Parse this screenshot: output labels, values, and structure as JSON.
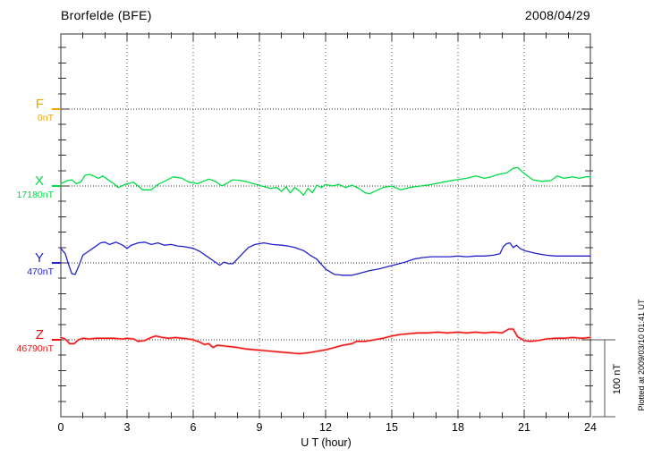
{
  "header": {
    "title": "Brorfelde (BFE)",
    "date": "2008/04/29"
  },
  "plot_note": "Plotted at 2009/03/10 01:41 UT",
  "chart_data": {
    "type": "line",
    "title": "Brorfelde (BFE)",
    "subtitle_date": "2008/04/29",
    "xlabel": "U T (hour)",
    "x_range": [
      0,
      24
    ],
    "x_ticks": [
      0,
      3,
      6,
      9,
      12,
      15,
      18,
      21,
      24
    ],
    "x_minor_tick_step_hours": 1,
    "grid": "dotted vertical lines every 3 hours; dotted horizontal line at each component baseline",
    "y_minor_tick_step_nT": 20,
    "scale_bar": {
      "label": "100 nT",
      "nT": 100
    },
    "series": [
      {
        "name": "F",
        "baseline_label": "0nT",
        "baseline_nT": 0,
        "color": "#f0a500",
        "x": [],
        "dnT": [],
        "note": "baseline only, no trace plotted"
      },
      {
        "name": "X",
        "baseline_label": "17180nT",
        "baseline_nT": 17180,
        "color": "#00dd44",
        "x": [
          0,
          0.3,
          0.5,
          0.7,
          0.9,
          1.1,
          1.3,
          1.5,
          1.7,
          1.9,
          2.1,
          2.4,
          2.6,
          2.9,
          3.3,
          3.7,
          4.1,
          4.4,
          4.7,
          5.1,
          5.5,
          5.8,
          6.2,
          6.7,
          7.0,
          7.3,
          7.8,
          8.2,
          8.5,
          9.1,
          9.5,
          9.8,
          10.0,
          10.2,
          10.4,
          10.6,
          10.8,
          11.0,
          11.2,
          11.4,
          11.6,
          11.8,
          12.0,
          12.3,
          12.6,
          12.9,
          13.2,
          13.5,
          13.8,
          14.0,
          14.3,
          14.6,
          15.0,
          15.4,
          15.8,
          16.3,
          16.8,
          17.3,
          17.9,
          18.4,
          18.8,
          19.2,
          19.5,
          19.8,
          20.2,
          20.5,
          20.7,
          20.9,
          21.1,
          21.4,
          21.8,
          22.2,
          22.5,
          22.8,
          23.2,
          23.5,
          23.8,
          24
        ],
        "dnT": [
          3,
          7,
          8,
          3,
          5,
          14,
          15,
          13,
          10,
          13,
          9,
          3,
          -2,
          2,
          5,
          -5,
          -5,
          2,
          6,
          12,
          10,
          5,
          3,
          9,
          6,
          0,
          8,
          7,
          5,
          0,
          -3,
          -2,
          -7,
          -1,
          -9,
          -2,
          -6,
          -12,
          -3,
          -9,
          1,
          -2,
          2,
          0,
          2,
          -2,
          1,
          -3,
          -9,
          -10,
          -6,
          -2,
          0,
          -5,
          -2,
          0,
          2,
          5,
          8,
          10,
          13,
          10,
          12,
          15,
          17,
          23,
          24,
          19,
          14,
          8,
          6,
          7,
          13,
          10,
          12,
          10,
          12,
          12
        ]
      },
      {
        "name": "Y",
        "baseline_label": "470nT",
        "baseline_nT": 470,
        "color": "#2222cc",
        "x": [
          0,
          0.2,
          0.35,
          0.5,
          0.65,
          0.8,
          1.0,
          1.2,
          1.5,
          1.8,
          2.0,
          2.2,
          2.5,
          2.8,
          3.0,
          3.2,
          3.5,
          3.8,
          4.1,
          4.4,
          4.7,
          5.0,
          5.3,
          5.6,
          6.0,
          6.3,
          6.6,
          6.9,
          7.2,
          7.4,
          7.6,
          7.8,
          8.1,
          8.5,
          8.8,
          9.2,
          9.6,
          10.0,
          10.3,
          10.6,
          11.0,
          11.3,
          11.6,
          12.0,
          12.4,
          12.8,
          13.2,
          13.6,
          14.0,
          14.4,
          14.8,
          15.2,
          15.6,
          16.0,
          16.4,
          16.8,
          17.2,
          17.6,
          18.0,
          18.4,
          18.8,
          19.2,
          19.6,
          19.9,
          20.05,
          20.2,
          20.35,
          20.5,
          20.65,
          20.8,
          21.0,
          21.3,
          21.6,
          22.0,
          22.4,
          22.8,
          23.2,
          23.6,
          24
        ],
        "dnT": [
          19,
          12,
          -2,
          -14,
          -15,
          -5,
          10,
          14,
          20,
          26,
          27,
          24,
          27,
          23,
          19,
          23,
          26,
          27,
          24,
          26,
          23,
          24,
          22,
          21,
          19,
          15,
          9,
          3,
          -3,
          1,
          -1,
          -1,
          8,
          20,
          24,
          26,
          24,
          23,
          22,
          20,
          16,
          10,
          5,
          -8,
          -15,
          -16,
          -16,
          -13,
          -10,
          -8,
          -5,
          -2,
          1,
          5,
          7,
          8,
          8,
          8,
          9,
          8,
          9,
          9,
          10,
          12,
          21,
          25,
          26,
          20,
          23,
          19,
          16,
          14,
          12,
          10,
          9,
          9,
          9,
          9,
          9
        ]
      },
      {
        "name": "Z",
        "baseline_label": "46790nT",
        "baseline_nT": 46790,
        "color": "#ee1111",
        "x": [
          0,
          0.2,
          0.4,
          0.6,
          0.8,
          1.0,
          1.3,
          1.6,
          2.0,
          2.4,
          2.8,
          3.0,
          3.3,
          3.5,
          3.8,
          4.1,
          4.3,
          4.6,
          4.9,
          5.2,
          5.5,
          5.8,
          6.0,
          6.3,
          6.5,
          6.7,
          6.9,
          7.1,
          7.4,
          7.7,
          8.0,
          8.4,
          8.8,
          9.2,
          9.6,
          10.0,
          10.4,
          10.8,
          11.2,
          11.6,
          12.0,
          12.4,
          12.8,
          13.2,
          13.4,
          13.8,
          14.2,
          14.6,
          15.0,
          15.4,
          15.8,
          16.2,
          16.6,
          17.1,
          17.5,
          18.0,
          18.4,
          18.8,
          19.2,
          19.6,
          20.0,
          20.3,
          20.5,
          20.7,
          21.0,
          21.3,
          21.6,
          22.0,
          22.4,
          22.8,
          23.2,
          23.6,
          24
        ],
        "dnT": [
          3,
          1,
          -5,
          -5,
          0,
          2,
          1,
          2,
          2,
          2,
          1,
          2,
          1,
          -2,
          -1,
          3,
          5,
          3,
          2,
          3,
          2,
          1,
          0,
          -3,
          -6,
          -5,
          -10,
          -7,
          -8,
          -9,
          -10,
          -12,
          -13,
          -14,
          -15,
          -16,
          -17,
          -18,
          -17,
          -15,
          -13,
          -10,
          -7,
          -5,
          -2,
          -2,
          0,
          2,
          5,
          7,
          8,
          9,
          9,
          10,
          9,
          10,
          9,
          10,
          9,
          10,
          9,
          14,
          14,
          4,
          -1,
          -2,
          -1,
          1,
          2,
          2,
          3,
          2,
          3
        ]
      }
    ]
  }
}
